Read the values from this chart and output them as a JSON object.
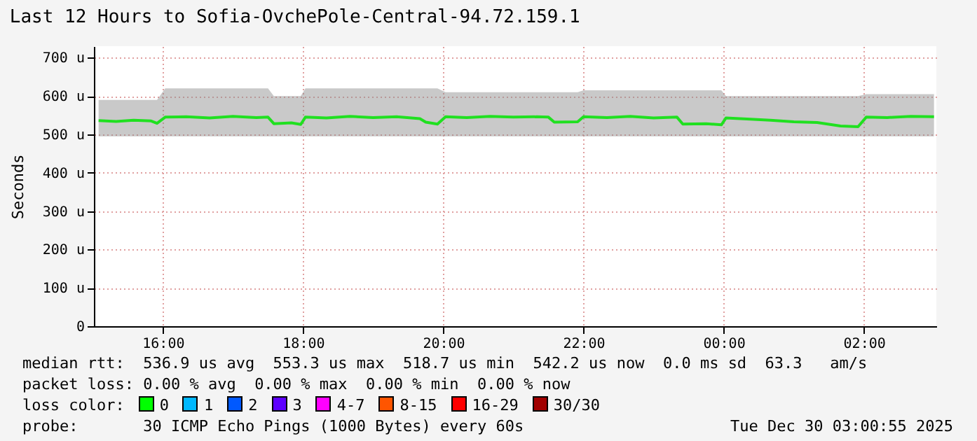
{
  "chart_data": {
    "type": "line",
    "title": "Last 12 Hours to Sofia-OvchePole-Central-94.72.159.1",
    "ylabel": "Seconds",
    "x": [
      "2025-12-29T15:05",
      "2025-12-29T15:20",
      "2025-12-29T15:35",
      "2025-12-29T15:50",
      "2025-12-29T15:55",
      "2025-12-29T16:02",
      "2025-12-29T16:20",
      "2025-12-29T16:40",
      "2025-12-29T17:00",
      "2025-12-29T17:20",
      "2025-12-29T17:30",
      "2025-12-29T17:35",
      "2025-12-29T17:50",
      "2025-12-29T17:58",
      "2025-12-29T18:02",
      "2025-12-29T18:20",
      "2025-12-29T18:40",
      "2025-12-29T19:00",
      "2025-12-29T19:20",
      "2025-12-29T19:40",
      "2025-12-29T19:45",
      "2025-12-29T19:55",
      "2025-12-29T20:02",
      "2025-12-29T20:20",
      "2025-12-29T20:40",
      "2025-12-29T21:00",
      "2025-12-29T21:20",
      "2025-12-29T21:30",
      "2025-12-29T21:35",
      "2025-12-29T21:55",
      "2025-12-29T22:00",
      "2025-12-29T22:20",
      "2025-12-29T22:40",
      "2025-12-29T23:00",
      "2025-12-29T23:20",
      "2025-12-29T23:25",
      "2025-12-29T23:45",
      "2025-12-29T23:58",
      "2025-12-30T00:02",
      "2025-12-30T00:20",
      "2025-12-30T00:40",
      "2025-12-30T01:00",
      "2025-12-30T01:20",
      "2025-12-30T01:40",
      "2025-12-30T01:55",
      "2025-12-30T02:02",
      "2025-12-30T02:20",
      "2025-12-30T02:40",
      "2025-12-30T03:00"
    ],
    "series": [
      {
        "color": "#20e020",
        "values": [
          536,
          534,
          537,
          535,
          529,
          545,
          546,
          543,
          547,
          544,
          545,
          528,
          530,
          526,
          545,
          543,
          547,
          544,
          546,
          541,
          532,
          527,
          546,
          544,
          547,
          545,
          546,
          545,
          532,
          533,
          546,
          544,
          547,
          543,
          545,
          527,
          528,
          525,
          543,
          540,
          537,
          533,
          531,
          522,
          520,
          545,
          544,
          547,
          546
        ],
        "lower": [
          495,
          495,
          495,
          495,
          495,
          495,
          495,
          495,
          495,
          495,
          495,
          495,
          495,
          495,
          495,
          495,
          495,
          495,
          495,
          495,
          495,
          495,
          495,
          495,
          495,
          495,
          495,
          495,
          495,
          495,
          495,
          495,
          495,
          495,
          495,
          495,
          495,
          495,
          495,
          495,
          495,
          495,
          495,
          495,
          495,
          495,
          495,
          495,
          495
        ],
        "upper": [
          590,
          590,
          590,
          590,
          590,
          620,
          620,
          620,
          620,
          620,
          620,
          600,
          600,
          600,
          620,
          620,
          620,
          620,
          620,
          620,
          620,
          620,
          610,
          610,
          610,
          610,
          610,
          610,
          610,
          610,
          615,
          615,
          615,
          615,
          615,
          615,
          615,
          615,
          600,
          600,
          600,
          600,
          600,
          600,
          600,
          605,
          605,
          605,
          605
        ]
      }
    ],
    "xlim": [
      "2025-12-29T15:01",
      "2025-12-30T03:02"
    ],
    "xticks": [
      {
        "value": "2025-12-29T16:00",
        "label": "16:00"
      },
      {
        "value": "2025-12-29T18:00",
        "label": "18:00"
      },
      {
        "value": "2025-12-29T20:00",
        "label": "20:00"
      },
      {
        "value": "2025-12-29T22:00",
        "label": "22:00"
      },
      {
        "value": "2025-12-30T00:00",
        "label": "00:00"
      },
      {
        "value": "2025-12-30T02:00",
        "label": "02:00"
      }
    ],
    "ylim": [
      0,
      730
    ],
    "yticks": [
      0,
      {
        "value": 100,
        "label": "100 u"
      },
      {
        "value": 200,
        "label": "200 u"
      },
      {
        "value": 300,
        "label": "300 u"
      },
      {
        "value": 400,
        "label": "400 u"
      },
      {
        "value": 500,
        "label": "500 u"
      },
      {
        "value": 600,
        "label": "600 u"
      },
      {
        "value": 700,
        "label": "700 u"
      }
    ],
    "grid": true,
    "annotations": [
      "median rtt:  536.9 us avg  553.3 us max  518.7 us min  542.2 us now  0.0 ms sd  63.3   am/s",
      "packet loss: 0.00 % avg  0.00 % max  0.00 % min  0.00 % now",
      "loss color:",
      "0",
      "1",
      "2",
      "3",
      "4-7",
      "8-15",
      "16-29",
      "30/30",
      "probe:       30 ICMP Echo Pings (1000 Bytes) every 60s",
      "Tue Dec 30 03:00:55 2025"
    ]
  }
}
